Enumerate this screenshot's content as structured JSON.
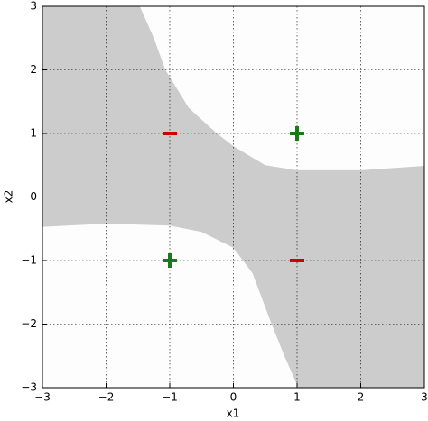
{
  "chart_data": {
    "type": "scatter",
    "xlabel": "x1",
    "ylabel": "x2",
    "xlim": [
      -3,
      3
    ],
    "ylim": [
      -3,
      3
    ],
    "xticks": [
      {
        "value": -3,
        "label": "−3"
      },
      {
        "value": -2,
        "label": "−2"
      },
      {
        "value": -1,
        "label": "−1"
      },
      0,
      1,
      2,
      3
    ],
    "yticks": [
      {
        "value": -3,
        "label": "−3"
      },
      {
        "value": -2,
        "label": "−2"
      },
      {
        "value": -1,
        "label": "−1"
      },
      0,
      1,
      2,
      3
    ],
    "grid": true,
    "region_color": "#cccccc",
    "boundary": {
      "upper": {
        "x": [
          -1.47,
          -1.25,
          -1.07,
          -0.7,
          -0.26,
          0,
          0.5,
          1,
          2,
          3
        ],
        "y": [
          3,
          2.5,
          2,
          1.4,
          1,
          0.8,
          0.5,
          0.42,
          0.42,
          0.49
        ]
      },
      "lower": {
        "x": [
          -3,
          -2,
          -1,
          -0.5,
          0,
          0.3,
          0.6,
          0.8,
          1.02
        ],
        "y": [
          -0.47,
          -0.42,
          -0.45,
          -0.55,
          -0.8,
          -1.2,
          -2,
          -2.5,
          -3
        ]
      }
    },
    "series": [
      {
        "marker": "plus",
        "color": "#1a7a1a",
        "x": [
          1,
          -1
        ],
        "values": [
          1,
          -1
        ]
      },
      {
        "marker": "minus",
        "color": "#cc0000",
        "x": [
          -1,
          1
        ],
        "values": [
          1,
          -1
        ]
      }
    ]
  }
}
